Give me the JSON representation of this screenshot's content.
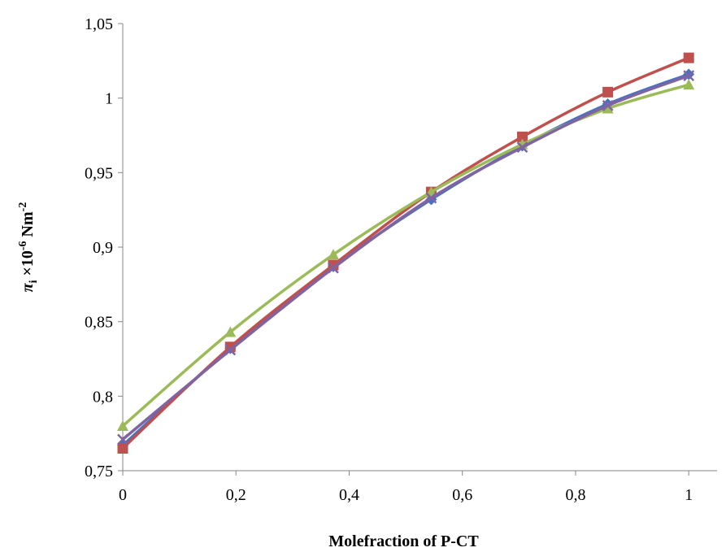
{
  "chart_data": {
    "type": "line",
    "title": "",
    "xlabel": "Molefraction of P-CT",
    "ylabel_parts": {
      "symbol": "π",
      "subscript": "i",
      "mult": " ×10",
      "exponent": "-6",
      "unit": " Nm",
      "unit_exp": "-2"
    },
    "xlim": [
      0,
      1.05
    ],
    "ylim": [
      0.75,
      1.05
    ],
    "x_ticks": [
      0,
      0.2,
      0.4,
      0.6,
      0.8,
      1
    ],
    "x_tick_labels": [
      "0",
      "0,2",
      "0,4",
      "0,6",
      "0,8",
      "1"
    ],
    "y_ticks": [
      0.75,
      0.8,
      0.85,
      0.9,
      0.95,
      1,
      1.05
    ],
    "y_tick_labels": [
      "0,75",
      "0,8",
      "0,85",
      "0,9",
      "0,95",
      "1",
      "1,05"
    ],
    "grid": false,
    "legend": "none",
    "x": [
      0,
      0.19,
      0.372,
      0.545,
      0.706,
      0.857,
      1
    ],
    "series": [
      {
        "color": "#4472c4",
        "marker": "diamond",
        "values": [
          0.767,
          0.832,
          0.887,
          0.932,
          0.968,
          0.996,
          1.016
        ]
      },
      {
        "color": "#c0504d",
        "marker": "square",
        "values": [
          0.765,
          0.833,
          0.888,
          0.937,
          0.974,
          1.004,
          1.027
        ]
      },
      {
        "color": "#9bbb59",
        "marker": "triangle",
        "values": [
          0.78,
          0.843,
          0.895,
          0.937,
          0.969,
          0.993,
          1.009
        ]
      },
      {
        "color": "#8064a2",
        "marker": "x",
        "values": [
          0.771,
          0.831,
          0.886,
          0.933,
          0.967,
          0.995,
          1.015
        ]
      }
    ]
  }
}
